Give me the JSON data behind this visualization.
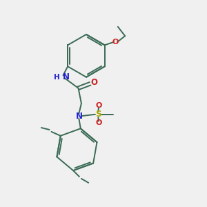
{
  "bg_color": "#f0f0f0",
  "bond_color": "#3a6b55",
  "N_color": "#2222cc",
  "O_color": "#cc2222",
  "S_color": "#aaaa00",
  "lw": 1.4,
  "fig_w": 3.0,
  "fig_h": 3.0,
  "dpi": 100,
  "xlim": [
    0,
    10
  ],
  "ylim": [
    0,
    10
  ]
}
